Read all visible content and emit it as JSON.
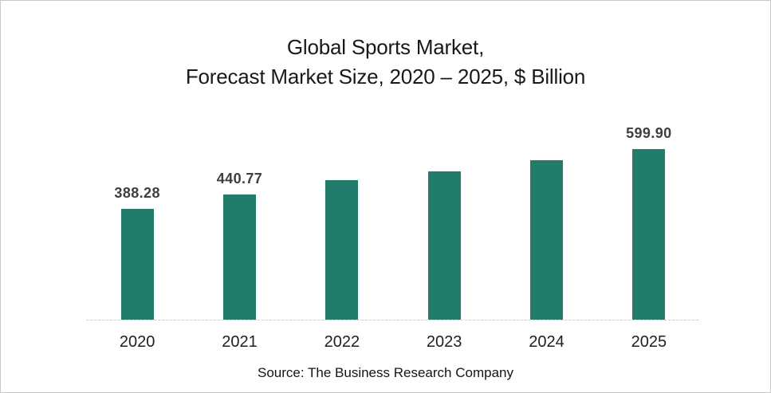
{
  "title": {
    "line1": "Global Sports Market,",
    "line2": "Forecast Market Size, 2020 – 2025, $ Billion"
  },
  "source": "Source: The Business Research Company",
  "colors": {
    "bar": "#217C6C",
    "data_label": "#3f3f3f",
    "axis_line": "#cfcfcf",
    "title_text": "#191919",
    "frame_border": "#c8c8c8",
    "background": "#ffffff"
  },
  "chart_data": {
    "type": "bar",
    "title": "Global Sports Market, Forecast Market Size, 2020 – 2025, $ Billion",
    "categories": [
      "2020",
      "2021",
      "2022",
      "2023",
      "2024",
      "2025"
    ],
    "values": [
      388.28,
      440.77,
      490,
      521,
      561,
      599.9
    ],
    "data_labels": [
      "388.28",
      "440.77",
      null,
      null,
      null,
      "599.90"
    ],
    "estimated_value_indices": [
      2,
      3,
      4
    ],
    "xlabel": "",
    "ylabel": "",
    "ylim": [
      0,
      620
    ],
    "grid": false,
    "legend": false,
    "y_axis_shown": false,
    "bar_color": "#217C6C",
    "caption": "Source: The Business Research Company"
  }
}
